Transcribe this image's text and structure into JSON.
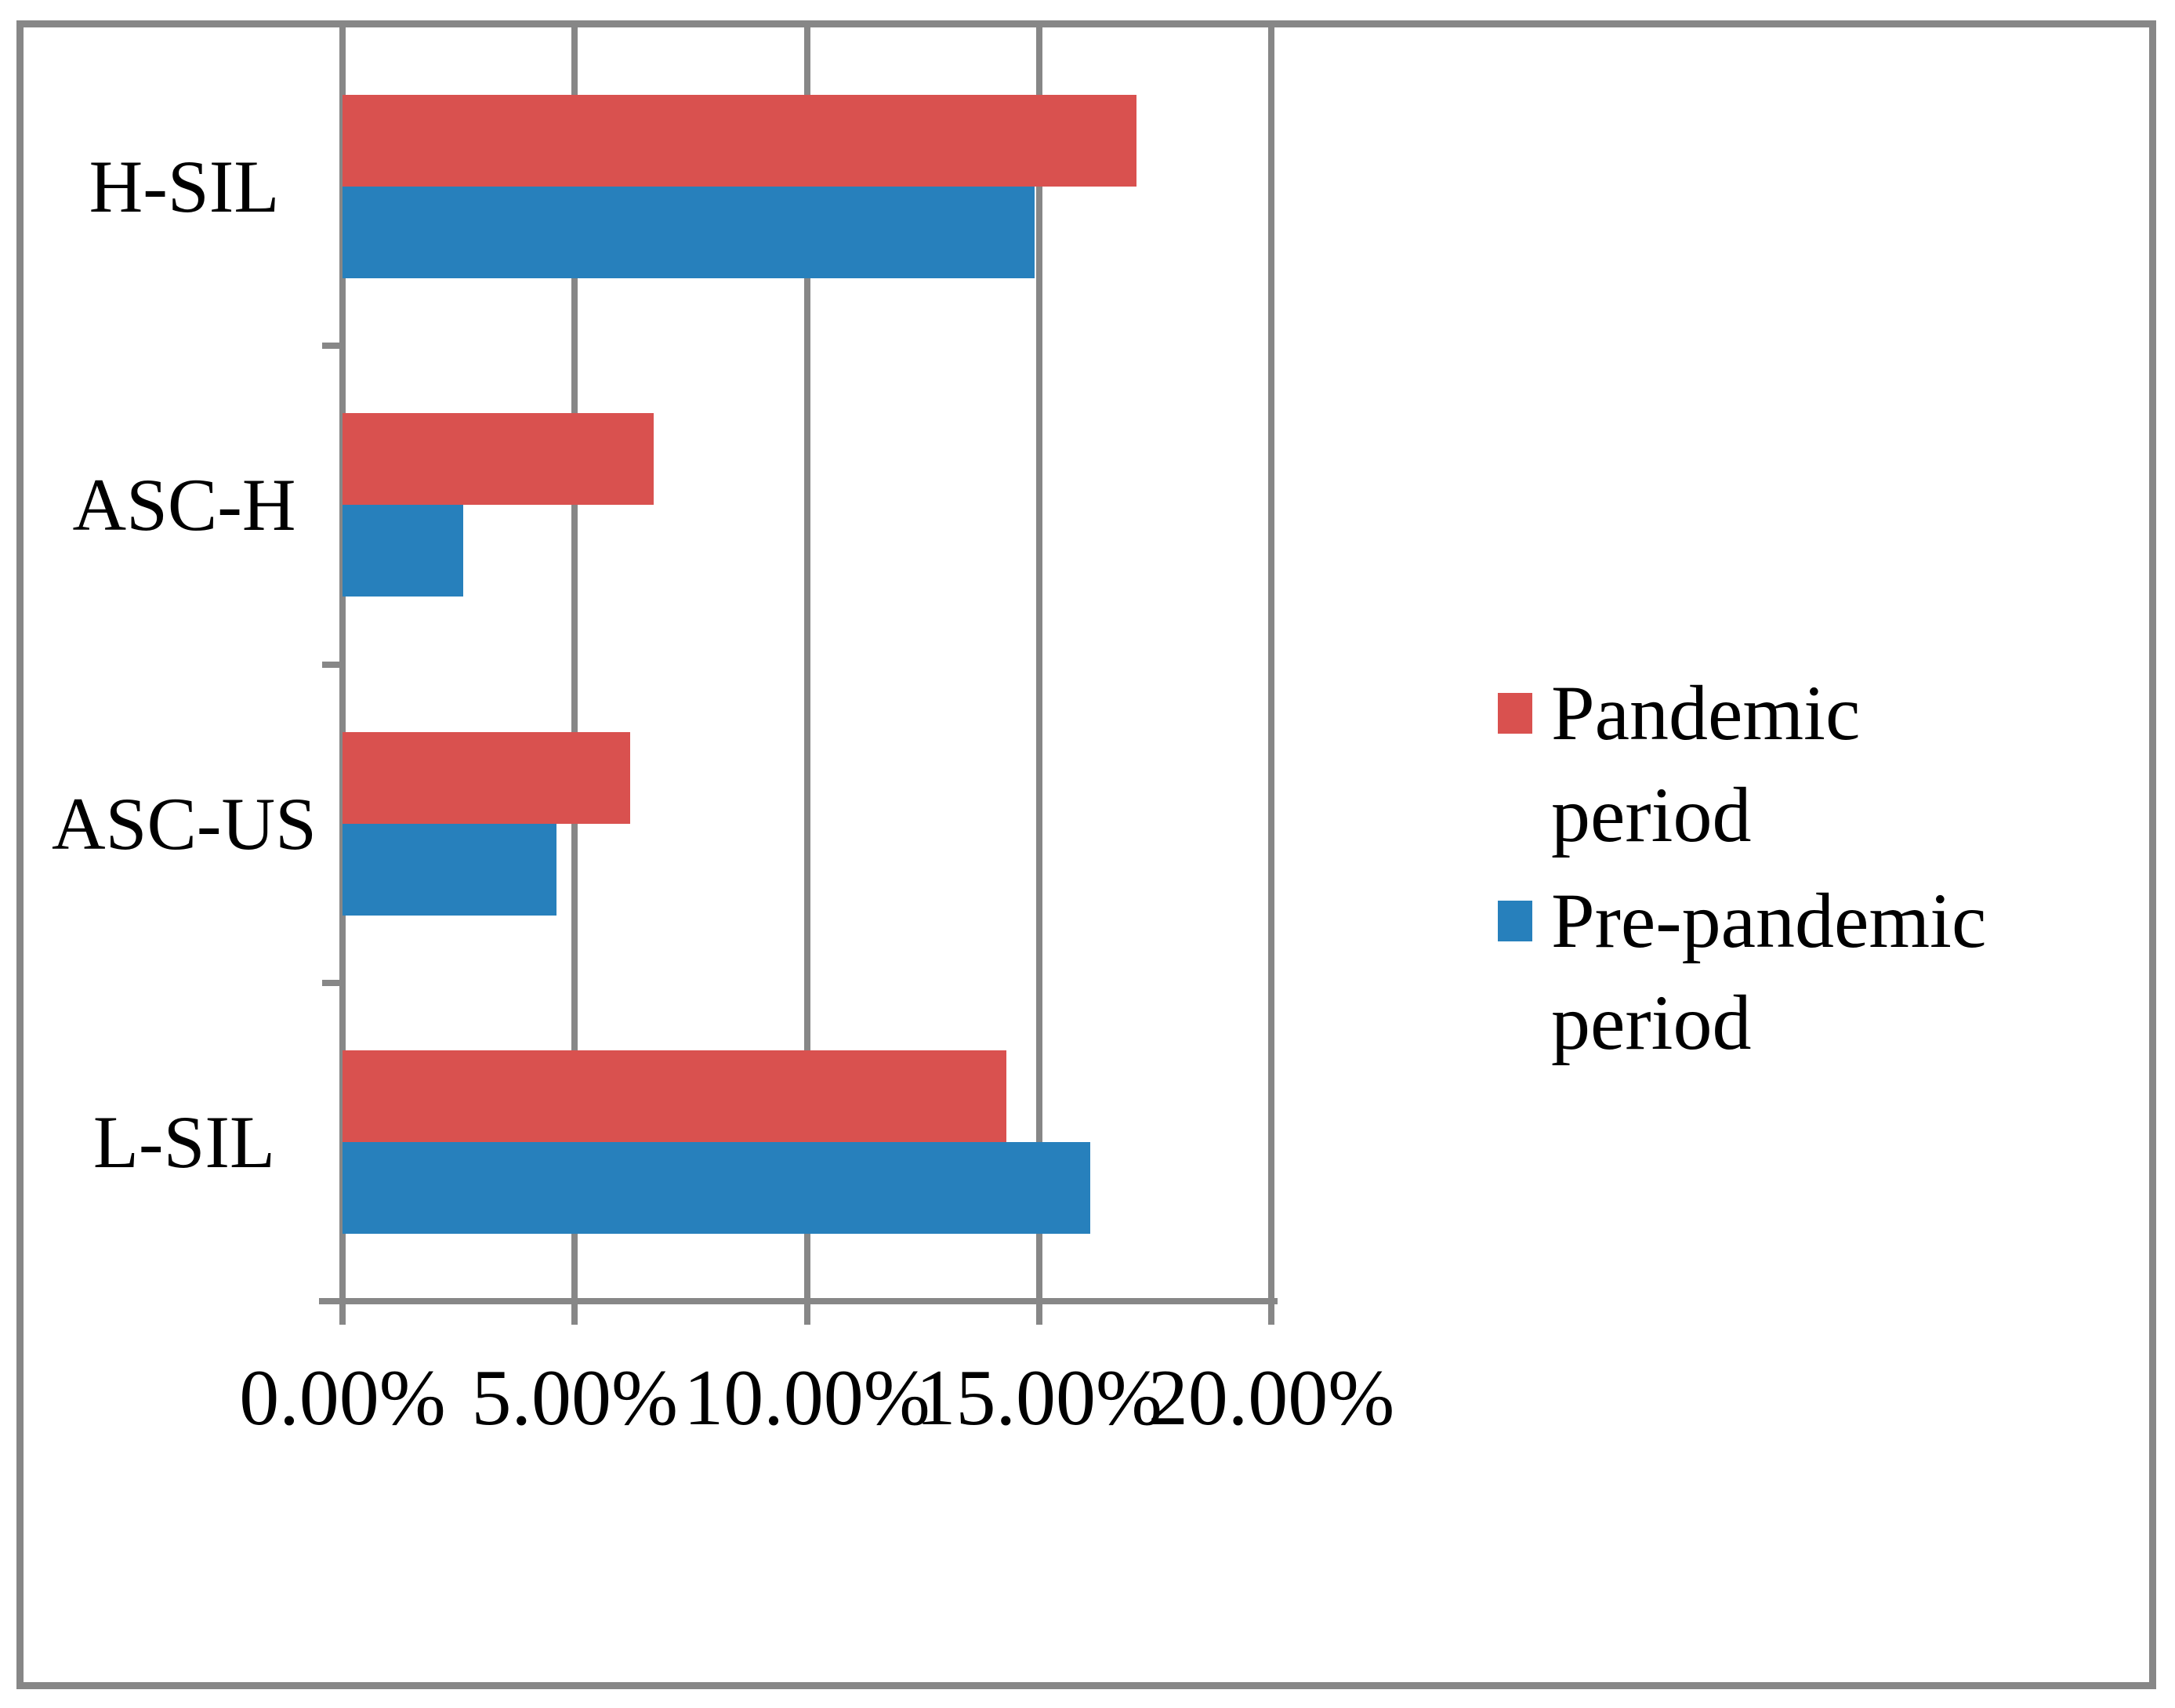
{
  "figure": {
    "background": "#ffffff",
    "line_color": "#878787",
    "text_color": "#000000"
  },
  "chart_data": {
    "type": "bar",
    "orientation": "horizontal",
    "title": "",
    "xlabel": "",
    "ylabel": "",
    "categories": [
      "H-SIL",
      "ASC-H",
      "ASC-US",
      "L-SIL"
    ],
    "series": [
      {
        "name": "Pandemic period",
        "color": "#d9514f",
        "values": [
          17.1,
          6.7,
          6.2,
          14.3
        ]
      },
      {
        "name": "Pre-pandemic period",
        "color": "#2780bc",
        "values": [
          14.9,
          2.6,
          4.6,
          16.1
        ]
      }
    ],
    "xlim": [
      0,
      20
    ],
    "xticks": [
      0,
      5,
      10,
      15,
      20
    ],
    "xtick_labels": [
      "0.00%",
      "5.00%",
      "10.00%",
      "15.00%",
      "20.00%"
    ],
    "value_unit": "%",
    "grid": true,
    "legend_position": "right-middle"
  },
  "legend": {
    "items": [
      {
        "label": "Pandemic period",
        "color": "#d9514f"
      },
      {
        "label": "Pre-pandemic period",
        "color": "#2780bc"
      }
    ]
  }
}
